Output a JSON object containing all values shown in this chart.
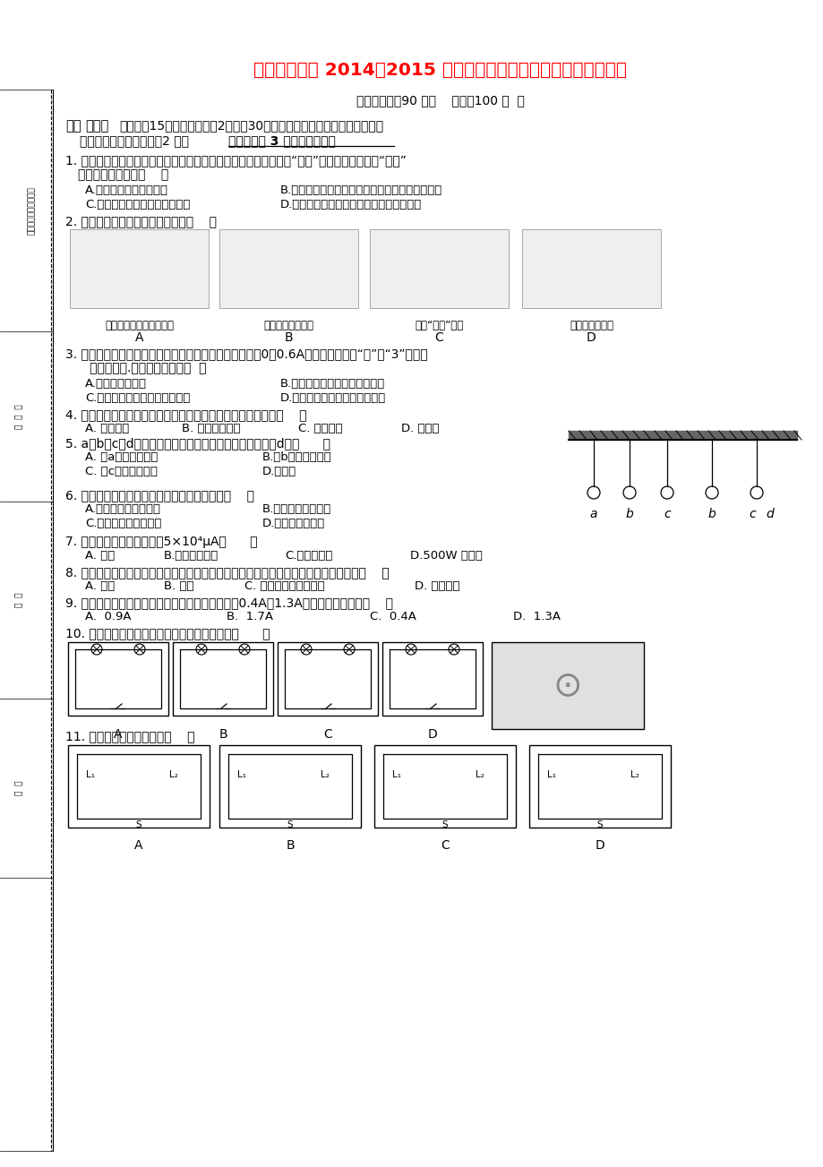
{
  "title": "龙岩一中分校 2014－2015 学年第一学期期中测试九年爉物理试卷",
  "title_color": "#FF0000",
  "title_fontsize": 14.5,
  "bg_color": "#FFFFFF",
  "exam_info": "（考试时间：90 分钟    满分：100 分  ）",
  "sec1a": "一、",
  "sec1b": "选择题",
  "sec1c": "（本题內15个小题，每小邘2分，內30分。每小题给出的四个选项中，只有",
  "sec1d": "一个正确选项，选对的给2 分。",
  "sec1e": "答案填在第 3 页的答题卷上）",
  "q1": "1. 在炎热的夏天，我们常会看到当打开冰筱冷冻室的门时，有许多“白气”涌出。下面关于此“白气”",
  "q1b": "的说法中正确的是（    ）",
  "q1o1": "A.冰筱内原有的白色气体",
  "q1o2": "B.冰筱内的水蜆气遇到室内的热空气而升华成的雾",
  "q1o3": "C.冰筱内的制冷液蘸发出的气体",
  "q1o4": "D.室内空气中的水蜆气遇冷液化成的小水珠",
  "q2": "2. 下列图中利用做功改变内能的是（    ）",
  "q2l1": "用热风干手器将湿手吹干",
  "q2l2": "小孩从滑梯上滑下",
  "q2l3": "冬天“哈气”取暖",
  "q2l4": "液化气燃烧加热",
  "q3": "3. 某学生使用电流表时，根据电路中的待测电流，应选用0～0.6A的量程，但误将“－”和“3”两接线",
  "q3b": "   柱接入电路.这样做的结果是（  ）",
  "q3o1": "A.指针摆动角度大",
  "q3o2": "B.指针摆动角度小，读数更准确",
  "q3o3": "C.指针摆动角度小，会损坏电表",
  "q3o4": "D.指针摆动角度小，读数不精确",
  "q4": "4. 汽车发动机外利用循环流动的水冷却发动机，这是因为水的（    ）",
  "q4o1": "A. 热传递快",
  "q4o2": "B. 温度降低得快",
  "q4o3": "C. 比热容大",
  "q4o4": "D. 内能多",
  "q5": "5. a、b、c、d四个通草球的相互作用情况如右图所示，则d球（      ）",
  "q5o1": "A. 与a球带同种电荷",
  "q5o2": "B.与b球带同种电荷",
  "q5o3": "C. 与c球带同种电荷",
  "q5o4": "D.不带电",
  "q6": "6. 有一段导体，下列措施中能减小其电阳的是（    ）",
  "q6o1": "A.减小导体两端的电压",
  "q6o2": "B.减小导体中的电流",
  "q6o3": "C.减小导体的横截面积",
  "q6o4": "D.减小导体的长度",
  "q7": "7. 下列哪个用电器的电流为5×10⁴μA（      ）",
  "q7o1": "A. 空调",
  "q7o2": "B.晶体管收音机",
  "q7o3": "C.家用电冰筱",
  "q7o4": "D.500W 电熨树",
  "q8": "8. 街道上的灯在正常情况下，同时亮，同时息灯，那么街上的各路灯之间的连接方式是（    ）",
  "q8o1": "A. 串联",
  "q8o2": "B. 并联",
  "q8o3": "C. 可以串联也可以并联",
  "q8o4": "D. 无法判断",
  "q9": "9. 用电流表测得某并联电路中两支路的电流分别为0.4A、1.3A，则干路中的电流（    ）",
  "q9o1": "A.  0.9A",
  "q9o2": "B.  1.7A",
  "q9o3": "C.  0.4A",
  "q9o4": "D.  1.3A",
  "q10": "10. 下列四个电路图中与右边实物图相对应的是（      ）",
  "q11": "11. 如图所示电路正确的是（    ）"
}
